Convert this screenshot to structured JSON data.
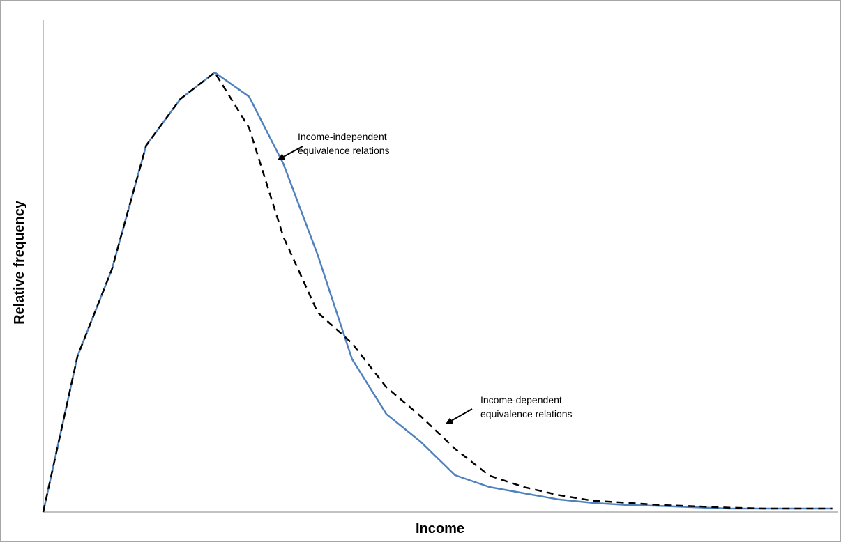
{
  "chart_data": {
    "type": "line",
    "title": "",
    "xlabel": "Income",
    "ylabel": "Relative frequency",
    "x_tick_labels": [],
    "y_tick_labels": [],
    "grid": false,
    "legend": "none",
    "x": [
      0,
      1,
      2,
      3,
      4,
      5,
      6,
      7,
      8,
      9,
      10,
      11,
      12,
      13,
      14,
      15,
      16,
      17,
      18,
      19,
      20,
      21,
      22,
      23
    ],
    "ylim": [
      0,
      100
    ],
    "series": [
      {
        "color": "#4f81bd",
        "style": "solid",
        "values": [
          0,
          35.5,
          55.2,
          83.4,
          94.0,
          100.0,
          94.5,
          79.2,
          58.5,
          34.8,
          22.3,
          16.0,
          8.4,
          5.7,
          4.3,
          2.9,
          2.1,
          1.6,
          1.4,
          1.1,
          0.8,
          0.8,
          0.8,
          0.8
        ]
      },
      {
        "color": "#000000",
        "style": "dashed",
        "values": [
          0,
          35.5,
          55.2,
          83.4,
          94.0,
          100.0,
          87.4,
          62.6,
          45.4,
          38.4,
          28.4,
          21.8,
          14.4,
          8.3,
          5.7,
          3.9,
          2.6,
          2.1,
          1.6,
          1.3,
          1.0,
          0.8,
          0.8,
          0.8
        ]
      }
    ],
    "annotations": [
      {
        "id": "independent",
        "lines": [
          "Income-independent",
          "equivalence relations"
        ],
        "series_index": 0,
        "points_to_x": 7
      },
      {
        "id": "dependent",
        "lines": [
          "Income-dependent",
          "equivalence relations"
        ],
        "series_index": 1,
        "points_to_x": 12
      }
    ]
  }
}
